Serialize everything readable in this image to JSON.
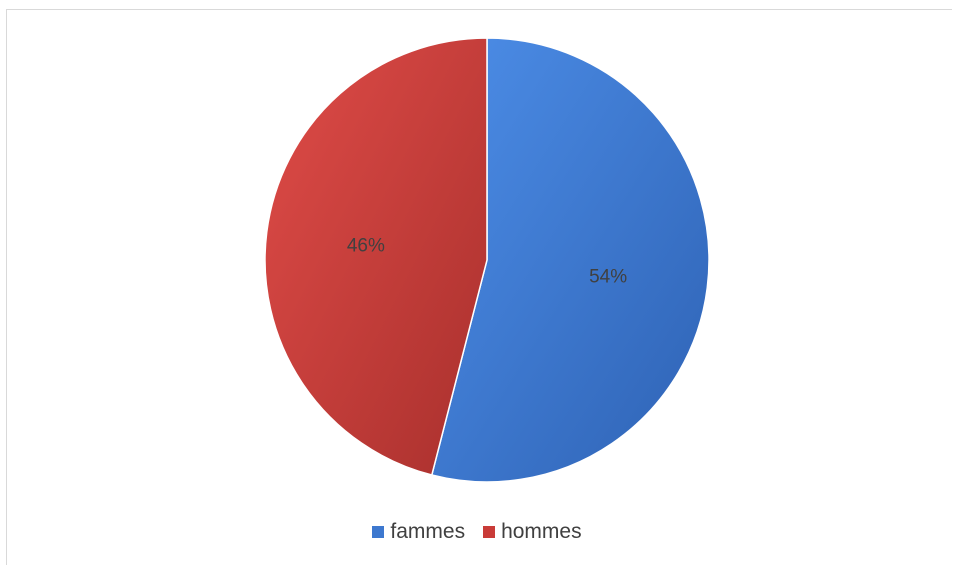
{
  "chart_data": {
    "type": "pie",
    "categories": [
      "fammes",
      "hommes"
    ],
    "values": [
      54,
      46
    ],
    "labels": [
      "54%",
      "46%"
    ],
    "colors": [
      "#3d78cf",
      "#c93b38"
    ],
    "legend_position": "bottom"
  }
}
